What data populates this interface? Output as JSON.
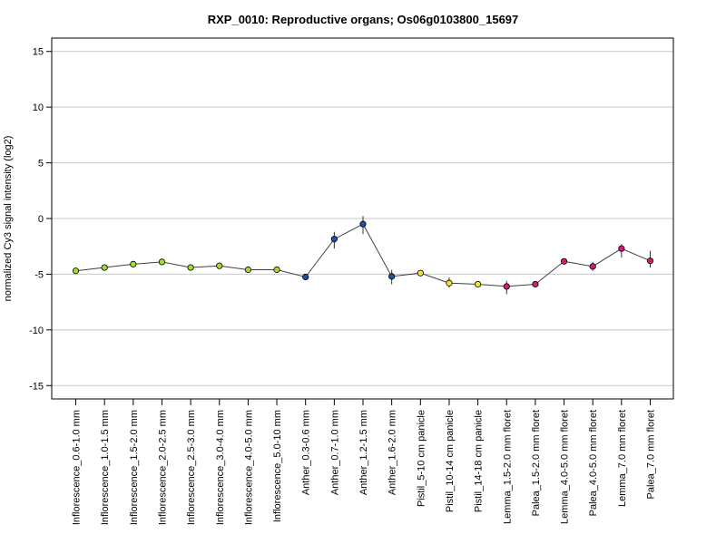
{
  "chart_data": {
    "type": "line",
    "title": "RXP_0010: Reproductive organs; Os06g0103800_15697",
    "xlabel": "",
    "ylabel": "normalized Cy3 signal intensity (log2)",
    "ylim": [
      -16.2,
      16.2
    ],
    "yticks": [
      15,
      10,
      5,
      0,
      -5,
      -10,
      -15
    ],
    "grid": true,
    "categories": [
      "Inflorescence_0.6-1.0 mm",
      "Inflorescence_1.0-1.5 mm",
      "Inflorescence_1.5-2.0 mm",
      "Inflorescence_2.0-2.5 mm",
      "Inflorescence_2.5-3.0 mm",
      "Inflorescence_3.0-4.0 mm",
      "Inflorescence_4.0-5.0 mm",
      "Inflorescence_5.0-10 mm",
      "Anther_0.3-0.6 mm",
      "Anther_0.7-1.0 mm",
      "Anther_1.2-1.5 mm",
      "Anther_1.6-2.0 mm",
      "Pistil_5-10 cm panicle",
      "Pistil_10-14 cm panicle",
      "Pistil_14-18 cm panicle",
      "Lemma_1.5-2.0 mm floret",
      "Palea_1.5-2.0 mm floret",
      "Lemma_4.0-5.0 mm floret",
      "Palea_4.0-5.0 mm floret",
      "Lemma_7.0 mm floret",
      "Palea_7.0 mm floret"
    ],
    "values": [
      -4.7,
      -4.4,
      -4.1,
      -3.9,
      -4.4,
      -4.25,
      -4.6,
      -4.6,
      -5.25,
      -1.85,
      -0.5,
      -5.2,
      -4.9,
      -5.8,
      -5.9,
      -6.1,
      -5.9,
      -3.85,
      -4.3,
      -2.7,
      -3.8
    ],
    "error_low": [
      -4.85,
      -4.55,
      -4.2,
      -4.0,
      -4.5,
      -4.35,
      -4.75,
      -4.75,
      -5.35,
      -2.7,
      -1.4,
      -5.9,
      -5.1,
      -6.2,
      -6.1,
      -6.8,
      -6.05,
      -3.95,
      -4.7,
      -3.5,
      -4.4
    ],
    "error_high": [
      -4.55,
      -4.25,
      -3.95,
      -3.75,
      -4.25,
      -4.1,
      -4.45,
      -4.45,
      -5.15,
      -1.2,
      0.2,
      -4.6,
      -4.75,
      -5.3,
      -5.75,
      -5.6,
      -5.75,
      -3.7,
      -3.9,
      -2.3,
      -2.9
    ],
    "point_colors": [
      "#a6d92e",
      "#a6d92e",
      "#a6d92e",
      "#a6d92e",
      "#a6d92e",
      "#a6d92e",
      "#a6d92e",
      "#a6d92e",
      "#1f4fa8",
      "#1f4fa8",
      "#1f4fa8",
      "#1f4fa8",
      "#f2e335",
      "#f2e335",
      "#f2e335",
      "#d11c73",
      "#d11c73",
      "#d11c73",
      "#d11c73",
      "#d11c73",
      "#d11c73"
    ],
    "line_color": "#404040",
    "grid_color": "#c8c8c8"
  }
}
